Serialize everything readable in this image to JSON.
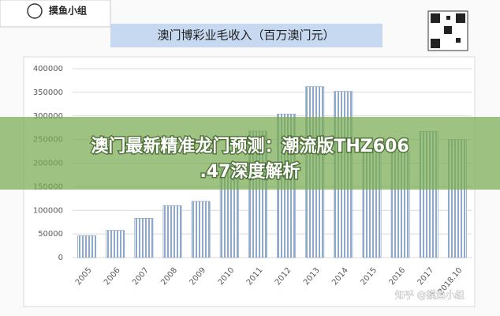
{
  "logo": {
    "text": "摸鱼小组"
  },
  "banner": {
    "title_lines": [
      "澳门最新精准龙门预测：潮流版THZ606",
      ".47深度解析"
    ]
  },
  "watermark": "知乎 @摸鱼小组",
  "chart_data": {
    "type": "bar",
    "title": "澳门博彩业毛收入（百万澳门元）",
    "categories": [
      "2005",
      "2006",
      "2007",
      "2008",
      "2009",
      "2010",
      "2011",
      "2012",
      "2013",
      "2014",
      "2015",
      "2016",
      "2017",
      "2018.10"
    ],
    "values": [
      46000,
      57500,
      83000,
      110000,
      119000,
      188000,
      268000,
      304000,
      362000,
      352000,
      232000,
      224000,
      267000,
      250000
    ],
    "color": "#8fa9c9",
    "ylim": [
      0,
      400000
    ],
    "yticks": [
      0,
      50000,
      100000,
      150000,
      200000,
      250000,
      300000,
      350000,
      400000
    ],
    "grid": true
  }
}
